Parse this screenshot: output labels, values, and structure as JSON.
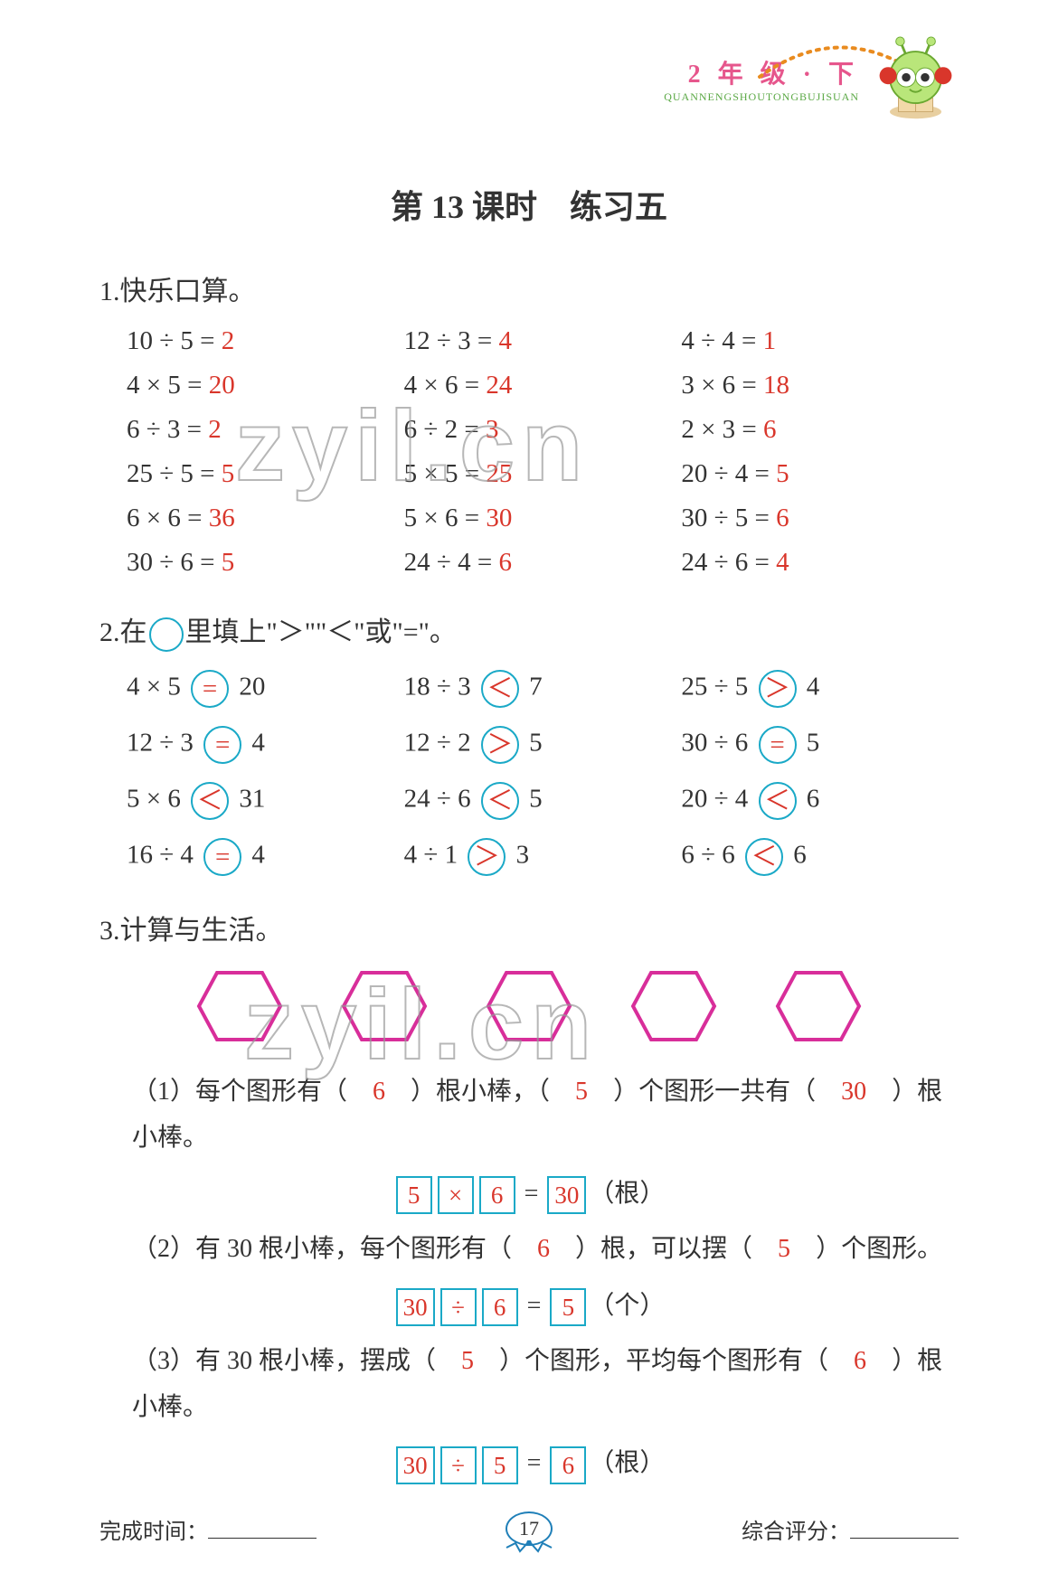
{
  "colors": {
    "answer_red": "#d9362b",
    "circle_teal": "#1aa9c7",
    "hex_magenta": "#d82e9a",
    "header_pink": "#e6568c",
    "header_green": "#5aa844",
    "text_dark": "#333333",
    "page_ellipse": "#1f7fb8"
  },
  "header": {
    "grade_text": "2 年 级 · 下",
    "pinyin": "QUANNENGSHOUTONGBUJISUAN"
  },
  "title": "第 13 课时　练习五",
  "section1": {
    "heading": "1.快乐口算。",
    "rows": [
      [
        [
          "10 ÷ 5 =",
          "2"
        ],
        [
          "12 ÷ 3 =",
          "4"
        ],
        [
          "4 ÷ 4 =",
          "1"
        ]
      ],
      [
        [
          "4 × 5 =",
          "20"
        ],
        [
          "4 × 6 =",
          "24"
        ],
        [
          "3 × 6 =",
          "18"
        ]
      ],
      [
        [
          "6 ÷ 3 =",
          "2"
        ],
        [
          "6 ÷ 2 =",
          "3"
        ],
        [
          "2 × 3 =",
          "6"
        ]
      ],
      [
        [
          "25 ÷ 5 =",
          "5"
        ],
        [
          "5 × 5 =",
          "25"
        ],
        [
          "20 ÷ 4 =",
          "5"
        ]
      ],
      [
        [
          "6 × 6 =",
          "36"
        ],
        [
          "5 × 6 =",
          "30"
        ],
        [
          "30 ÷ 5 =",
          "6"
        ]
      ],
      [
        [
          "30 ÷ 6 =",
          "5"
        ],
        [
          "24 ÷ 4 =",
          "6"
        ],
        [
          "24 ÷ 6 =",
          "4"
        ]
      ]
    ]
  },
  "section2": {
    "heading_pre": "2.在",
    "heading_post": "里填上\"＞\"\"＜\"或\"=\"。",
    "rows": [
      [
        [
          "4 × 5",
          "=",
          "20"
        ],
        [
          "18 ÷ 3",
          "＜",
          "7"
        ],
        [
          "25 ÷ 5",
          "＞",
          "4"
        ]
      ],
      [
        [
          "12 ÷ 3",
          "=",
          "4"
        ],
        [
          "12 ÷ 2",
          "＞",
          "5"
        ],
        [
          "30 ÷ 6",
          "=",
          "5"
        ]
      ],
      [
        [
          "5 × 6",
          "＜",
          "31"
        ],
        [
          "24 ÷ 6",
          "＜",
          "5"
        ],
        [
          "20 ÷ 4",
          "＜",
          "6"
        ]
      ],
      [
        [
          "16 ÷ 4",
          "=",
          "4"
        ],
        [
          "4 ÷ 1",
          "＞",
          "3"
        ],
        [
          "6 ÷ 6",
          "＜",
          "6"
        ]
      ]
    ]
  },
  "section3": {
    "heading": "3.计算与生活。",
    "hex_count": 5,
    "q1": {
      "pre1": "（1）每个图形有（",
      "a1": "6",
      "mid1": "）根小棒，（",
      "a2": "5",
      "mid2": "）个图形一共有（",
      "a3": "30",
      "post": "）根小棒。",
      "eq": [
        "5",
        "×",
        "6",
        "=",
        "30",
        "（根）"
      ]
    },
    "q2": {
      "pre1": "（2）有 30 根小棒，每个图形有（",
      "a1": "6",
      "mid1": "）根，可以摆（",
      "a2": "5",
      "post": "）个图形。",
      "eq": [
        "30",
        "÷",
        "6",
        "=",
        "5",
        "（个）"
      ]
    },
    "q3": {
      "pre1": "（3）有 30 根小棒，摆成（",
      "a1": "5",
      "mid1": "）个图形，平均每个图形有（",
      "a2": "6",
      "post": "）根小棒。",
      "eq": [
        "30",
        "÷",
        "5",
        "=",
        "6",
        "（根）"
      ]
    }
  },
  "footer": {
    "time_label": "完成时间：",
    "page_num": "17",
    "score_label": "综合评分："
  },
  "watermark": "zyil.cn"
}
